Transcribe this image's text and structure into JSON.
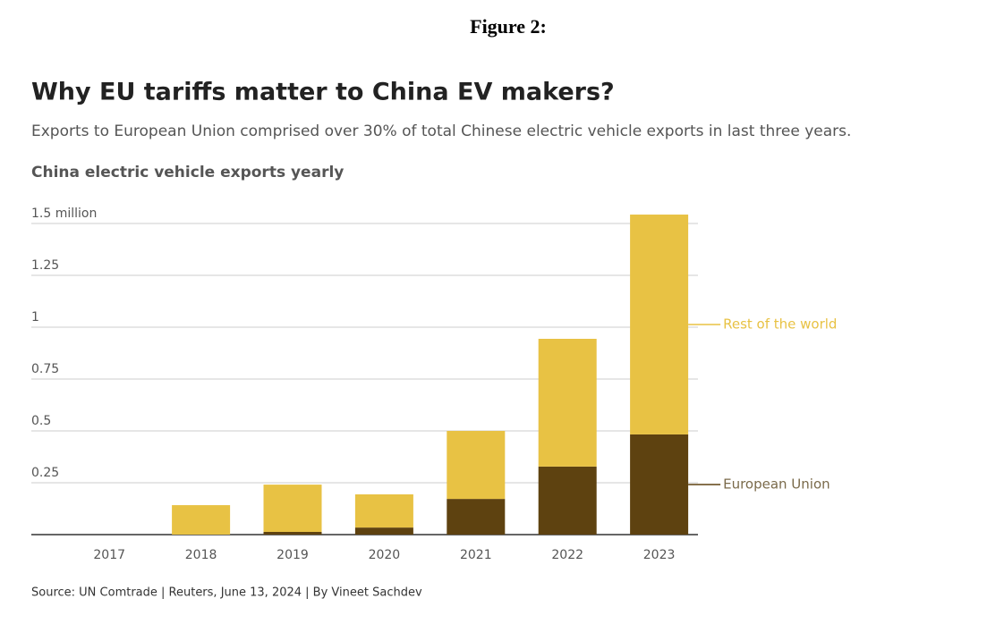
{
  "figure_label": "Figure 2:",
  "chart_data": {
    "type": "stacked-bar",
    "title": "Why EU tariffs matter to China EV makers?",
    "subtitle": "Exports to European Union comprised over 30% of total Chinese electric vehicle exports in last three years.",
    "chart_title": "China electric vehicle exports yearly",
    "source": "Source: UN Comtrade | Reuters, June 13, 2024 | By Vineet Sachdev",
    "categories": [
      "2017",
      "2018",
      "2019",
      "2020",
      "2021",
      "2022",
      "2023"
    ],
    "series": [
      {
        "name": "European Union",
        "color": "#5e4210",
        "values": [
          0,
          0,
          0.013,
          0.034,
          0.172,
          0.328,
          0.483
        ]
      },
      {
        "name": "Rest of the world",
        "color": "#e8c244",
        "values": [
          0,
          0.142,
          0.228,
          0.16,
          0.328,
          0.616,
          1.06
        ]
      }
    ],
    "ylim": [
      0,
      1.5
    ],
    "yticks": [
      0.25,
      0.5,
      0.75,
      1,
      1.25,
      {
        "value": 1.5,
        "label": "1.5 million"
      }
    ],
    "grid": true
  }
}
